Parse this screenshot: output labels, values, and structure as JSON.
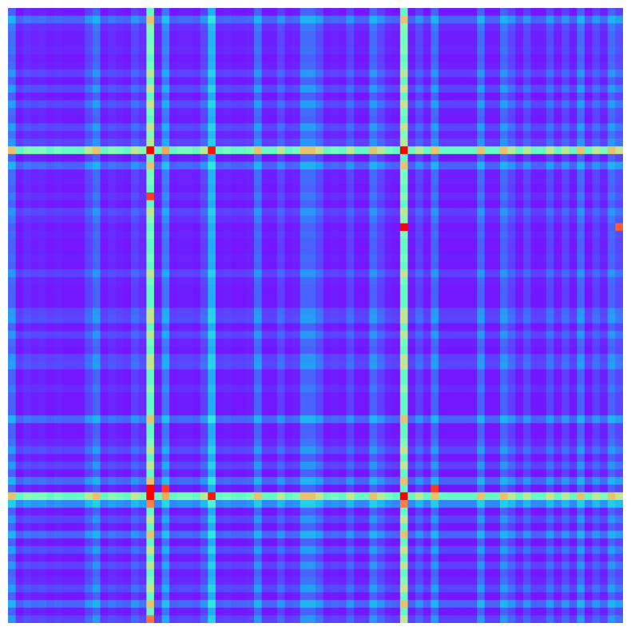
{
  "chart_data": {
    "type": "heatmap",
    "title": "",
    "xlabel": "",
    "ylabel": "",
    "colormap": "rainbow",
    "rows": 80,
    "cols": 80,
    "value_range": [
      0,
      1
    ],
    "axes_visible": false,
    "grid": false,
    "legend": "none",
    "row_profile": [
      0.05,
      0.3,
      0.12,
      0.08,
      0.08,
      0.1,
      0.05,
      0.08,
      0.2,
      0.05,
      0.22,
      0.05,
      0.22,
      0.08,
      0.05,
      0.22,
      0.1,
      0.2,
      0.95,
      0.05,
      0.3,
      0.08,
      0.08,
      0.05,
      0.12,
      0.05,
      0.2,
      0.12,
      0.05,
      0.08,
      0.05,
      0.05,
      0.08,
      0.05,
      0.2,
      0.08,
      0.05,
      0.05,
      0.05,
      0.2,
      0.22,
      0.05,
      0.2,
      0.08,
      0.05,
      0.2,
      0.22,
      0.05,
      0.05,
      0.12,
      0.05,
      0.05,
      0.05,
      0.3,
      0.05,
      0.05,
      0.1,
      0.22,
      0.05,
      0.2,
      0.05,
      0.3,
      0.05,
      0.95,
      0.4,
      0.05,
      0.2,
      0.05,
      0.3,
      0.05,
      0.22,
      0.05,
      0.2,
      0.05,
      0.1,
      0.22,
      0.05,
      0.3,
      0.05,
      0.2
    ],
    "col_profile": [
      0.3,
      0.05,
      0.12,
      0.08,
      0.1,
      0.05,
      0.08,
      0.05,
      0.05,
      0.05,
      0.2,
      0.3,
      0.05,
      0.12,
      0.08,
      0.05,
      0.2,
      0.12,
      0.95,
      0.05,
      0.35,
      0.05,
      0.08,
      0.08,
      0.05,
      0.2,
      0.5,
      0.05,
      0.08,
      0.05,
      0.05,
      0.08,
      0.3,
      0.05,
      0.05,
      0.2,
      0.05,
      0.08,
      0.3,
      0.3,
      0.22,
      0.05,
      0.08,
      0.05,
      0.2,
      0.05,
      0.05,
      0.3,
      0.2,
      0.08,
      0.05,
      0.95,
      0.05,
      0.2,
      0.05,
      0.3,
      0.05,
      0.05,
      0.05,
      0.05,
      0.05,
      0.3,
      0.05,
      0.05,
      0.3,
      0.2,
      0.05,
      0.2,
      0.05,
      0.05,
      0.22,
      0.05,
      0.2,
      0.05,
      0.3,
      0.05,
      0.2,
      0.08,
      0.3,
      0.22
    ],
    "hot_cells": [
      {
        "row": 28,
        "col": 51,
        "value": 1.0
      },
      {
        "row": 62,
        "col": 18,
        "value": 1.0
      },
      {
        "row": 24,
        "col": 18,
        "value": 0.95
      },
      {
        "row": 62,
        "col": 20,
        "value": 0.95
      },
      {
        "row": 62,
        "col": 55,
        "value": 0.95
      },
      {
        "row": 28,
        "col": 79,
        "value": 0.92
      },
      {
        "row": 79,
        "col": 18,
        "value": 0.9
      }
    ]
  }
}
